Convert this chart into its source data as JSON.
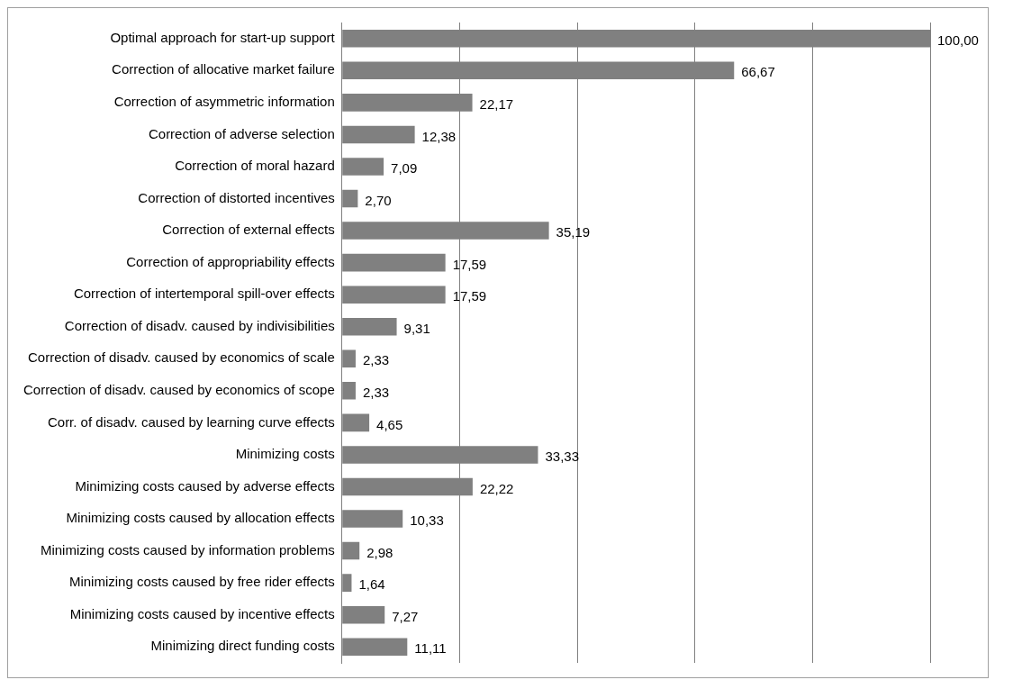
{
  "chart_data": {
    "type": "bar",
    "orientation": "horizontal",
    "categories": [
      "Optimal approach for start-up support",
      "Correction of allocative market failure",
      "Correction of asymmetric information",
      "Correction of adverse selection",
      "Correction of moral hazard",
      "Correction of distorted incentives",
      "Correction of external effects",
      "Correction of appropriability effects",
      "Correction of intertemporal spill-over effects",
      "Correction of disadv. caused by indivisibilities",
      "Correction of disadv. caused by economics of scale",
      "Correction of disadv. caused by economics of scope",
      "Corr. of disadv. caused by learning curve effects",
      "Minimizing costs",
      "Minimizing costs caused by adverse effects",
      "Minimizing costs caused by allocation effects",
      "Minimizing costs caused by information problems",
      "Minimizing costs caused by free rider effects",
      "Minimizing costs caused by incentive effects",
      "Minimizing direct funding costs"
    ],
    "values": [
      100,
      66.67,
      22.17,
      12.38,
      7.09,
      2.7,
      35.19,
      17.59,
      17.59,
      9.31,
      2.33,
      2.33,
      4.65,
      33.33,
      22.22,
      10.33,
      2.98,
      1.64,
      7.27,
      11.11
    ],
    "value_labels": [
      "100,00",
      "66,67",
      "22,17",
      "12,38",
      "7,09",
      "2,70",
      "35,19",
      "17,59",
      "17,59",
      "9,31",
      "2,33",
      "2,33",
      "4,65",
      "33,33",
      "22,22",
      "10,33",
      "2,98",
      "1,64",
      "7,27",
      "11,11"
    ],
    "color": "#808080",
    "xlim": [
      0,
      100
    ],
    "xticks": [
      {
        "value": 0,
        "label": null
      },
      {
        "value": 20,
        "label": null
      },
      {
        "value": 40,
        "label": null
      },
      {
        "value": 60,
        "label": null
      },
      {
        "value": 80,
        "label": null
      },
      {
        "value": 100,
        "label": null
      }
    ],
    "grid": "x",
    "tick_labels": "y",
    "legend": false
  }
}
